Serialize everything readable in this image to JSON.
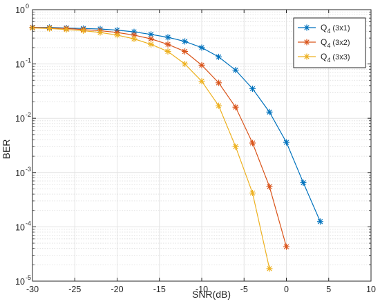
{
  "chart_data": {
    "type": "line",
    "xlabel": "SNR(dB)",
    "ylabel": "BER",
    "xlim": [
      -30,
      10
    ],
    "ylim": [
      1e-05,
      1
    ],
    "yscale": "log",
    "grid": true,
    "minor_grid": true,
    "legend_position": "top-right",
    "x_ticks": [
      -30,
      -25,
      -20,
      -15,
      -10,
      -5,
      0,
      5,
      10
    ],
    "x_tick_labels": [
      "-30",
      "-25",
      "-20",
      "-15",
      "-10",
      "-5",
      "0",
      "5",
      "10"
    ],
    "y_ticks": [
      1e-05,
      0.0001,
      0.001,
      0.01,
      0.1,
      1
    ],
    "y_tick_labels": [
      {
        "base": "10",
        "exp": "-5"
      },
      {
        "base": "10",
        "exp": "-4"
      },
      {
        "base": "10",
        "exp": "-3"
      },
      {
        "base": "10",
        "exp": "-2"
      },
      {
        "base": "10",
        "exp": "-1"
      },
      {
        "base": "10",
        "exp": "0"
      }
    ],
    "series": [
      {
        "name": "Q4 (3x1)",
        "legend": {
          "main": "Q",
          "sub": "4",
          "suffix": " (3x1)"
        },
        "color": "#0072BD",
        "marker": "asterisk",
        "x": [
          -30,
          -28,
          -26,
          -24,
          -22,
          -20,
          -18,
          -16,
          -14,
          -12,
          -10,
          -8,
          -6,
          -4,
          -2,
          0,
          2,
          4
        ],
        "values": [
          0.47,
          0.47,
          0.46,
          0.45,
          0.44,
          0.42,
          0.39,
          0.35,
          0.31,
          0.26,
          0.2,
          0.135,
          0.077,
          0.035,
          0.013,
          0.0036,
          0.00065,
          0.000125
        ]
      },
      {
        "name": "Q4 (3x2)",
        "legend": {
          "main": "Q",
          "sub": "4",
          "suffix": " (3x2)"
        },
        "color": "#D95319",
        "marker": "asterisk",
        "x": [
          -30,
          -28,
          -26,
          -24,
          -22,
          -20,
          -18,
          -16,
          -14,
          -12,
          -10,
          -8,
          -6,
          -4,
          -2,
          0
        ],
        "values": [
          0.47,
          0.46,
          0.45,
          0.43,
          0.41,
          0.38,
          0.34,
          0.29,
          0.23,
          0.17,
          0.095,
          0.045,
          0.016,
          0.0035,
          0.00055,
          4.3e-05
        ]
      },
      {
        "name": "Q4 (3x3)",
        "legend": {
          "main": "Q",
          "sub": "4",
          "suffix": " (3x3)"
        },
        "color": "#EDB120",
        "marker": "asterisk",
        "x": [
          -30,
          -28,
          -26,
          -24,
          -22,
          -20,
          -18,
          -16,
          -14,
          -12,
          -10,
          -8,
          -6,
          -4,
          -2
        ],
        "values": [
          0.46,
          0.45,
          0.43,
          0.41,
          0.38,
          0.34,
          0.29,
          0.23,
          0.17,
          0.1,
          0.048,
          0.017,
          0.003,
          0.00042,
          1.7e-05
        ]
      }
    ]
  }
}
